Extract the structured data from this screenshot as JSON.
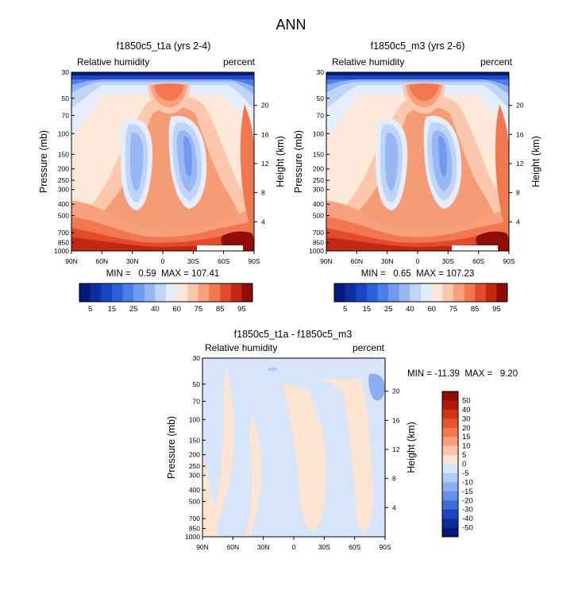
{
  "figure": {
    "title": "ANN"
  },
  "chart_data": [
    {
      "type": "heatmap",
      "title": "f1850c5_t1a (yrs 2-4)",
      "left_label": "Relative humidity",
      "right_label": "percent",
      "xlabel": "",
      "ylabel": "Pressure (mb)",
      "y2label": "Height (km)",
      "x_ticks": [
        "90N",
        "60N",
        "30N",
        "0",
        "30S",
        "60S",
        "90S"
      ],
      "y_ticks": [
        30,
        50,
        70,
        100,
        150,
        200,
        250,
        300,
        400,
        500,
        700,
        850,
        1000
      ],
      "y2_ticks": [
        20,
        16,
        12,
        8,
        4
      ],
      "ylim": [
        30,
        1000
      ],
      "y_scale": "log",
      "stats": "MIN =   0.59  MAX = 107.41",
      "min": 0.59,
      "max": 107.41,
      "colorbar": {
        "orientation": "horizontal",
        "labels": [
          "5",
          "15",
          "25",
          "40",
          "60",
          "75",
          "85",
          "95"
        ],
        "levels": [
          5,
          10,
          15,
          20,
          25,
          30,
          40,
          50,
          60,
          70,
          75,
          80,
          85,
          90,
          95
        ],
        "colors": [
          "#08177a",
          "#0c2fa0",
          "#1744c0",
          "#2b5fdc",
          "#4a7ee8",
          "#6f9aef",
          "#97b8f3",
          "#c0d4f8",
          "#e3ecfb",
          "#fde8d9",
          "#fbc7ac",
          "#f8a07d",
          "#f1774f",
          "#e24c2a",
          "#c42812",
          "#8f0d07"
        ]
      }
    },
    {
      "type": "heatmap",
      "title": "f1850c5_m3 (yrs 2-6)",
      "left_label": "Relative humidity",
      "right_label": "percent",
      "xlabel": "",
      "ylabel": "Pressure (mb)",
      "y2label": "Height (km)",
      "x_ticks": [
        "90N",
        "60N",
        "30N",
        "0",
        "30S",
        "60S",
        "90S"
      ],
      "y_ticks": [
        30,
        50,
        70,
        100,
        150,
        200,
        250,
        300,
        400,
        500,
        700,
        850,
        1000
      ],
      "y2_ticks": [
        20,
        16,
        12,
        8,
        4
      ],
      "ylim": [
        30,
        1000
      ],
      "y_scale": "log",
      "stats": "MIN =   0.65  MAX = 107.23",
      "min": 0.65,
      "max": 107.23,
      "colorbar": {
        "orientation": "horizontal",
        "labels": [
          "5",
          "15",
          "25",
          "40",
          "60",
          "75",
          "85",
          "95"
        ],
        "levels": [
          5,
          10,
          15,
          20,
          25,
          30,
          40,
          50,
          60,
          70,
          75,
          80,
          85,
          90,
          95
        ],
        "colors": [
          "#08177a",
          "#0c2fa0",
          "#1744c0",
          "#2b5fdc",
          "#4a7ee8",
          "#6f9aef",
          "#97b8f3",
          "#c0d4f8",
          "#e3ecfb",
          "#fde8d9",
          "#fbc7ac",
          "#f8a07d",
          "#f1774f",
          "#e24c2a",
          "#c42812",
          "#8f0d07"
        ]
      }
    },
    {
      "type": "heatmap",
      "title": "f1850c5_t1a - f1850c5_m3",
      "left_label": "Relative humidity",
      "right_label": "percent",
      "xlabel": "",
      "ylabel": "Pressure (mb)",
      "y2label": "Height (km)",
      "x_ticks": [
        "90N",
        "60N",
        "30N",
        "0",
        "30S",
        "60S",
        "90S"
      ],
      "y_ticks": [
        30,
        50,
        70,
        100,
        150,
        200,
        250,
        300,
        400,
        500,
        700,
        850,
        1000
      ],
      "y2_ticks": [
        20,
        16,
        12,
        8,
        4
      ],
      "ylim": [
        30,
        1000
      ],
      "y_scale": "log",
      "stats": "MIN = -11.39  MAX =   9.20",
      "min": -11.39,
      "max": 9.2,
      "colorbar": {
        "orientation": "vertical",
        "labels": [
          "50",
          "40",
          "30",
          "20",
          "15",
          "10",
          "5",
          "0",
          "-5",
          "-10",
          "-15",
          "-20",
          "-30",
          "-40",
          "-50"
        ],
        "colors": [
          "#8f0d07",
          "#b01c0c",
          "#cf3418",
          "#e6532d",
          "#f37850",
          "#f89d7a",
          "#fbc4a8",
          "#fde3d2",
          "#d6e5fa",
          "#b2cbf5",
          "#8caeef",
          "#6590e8",
          "#3d6ddc",
          "#1c47c0",
          "#0c2d99",
          "#08177a"
        ]
      }
    }
  ]
}
